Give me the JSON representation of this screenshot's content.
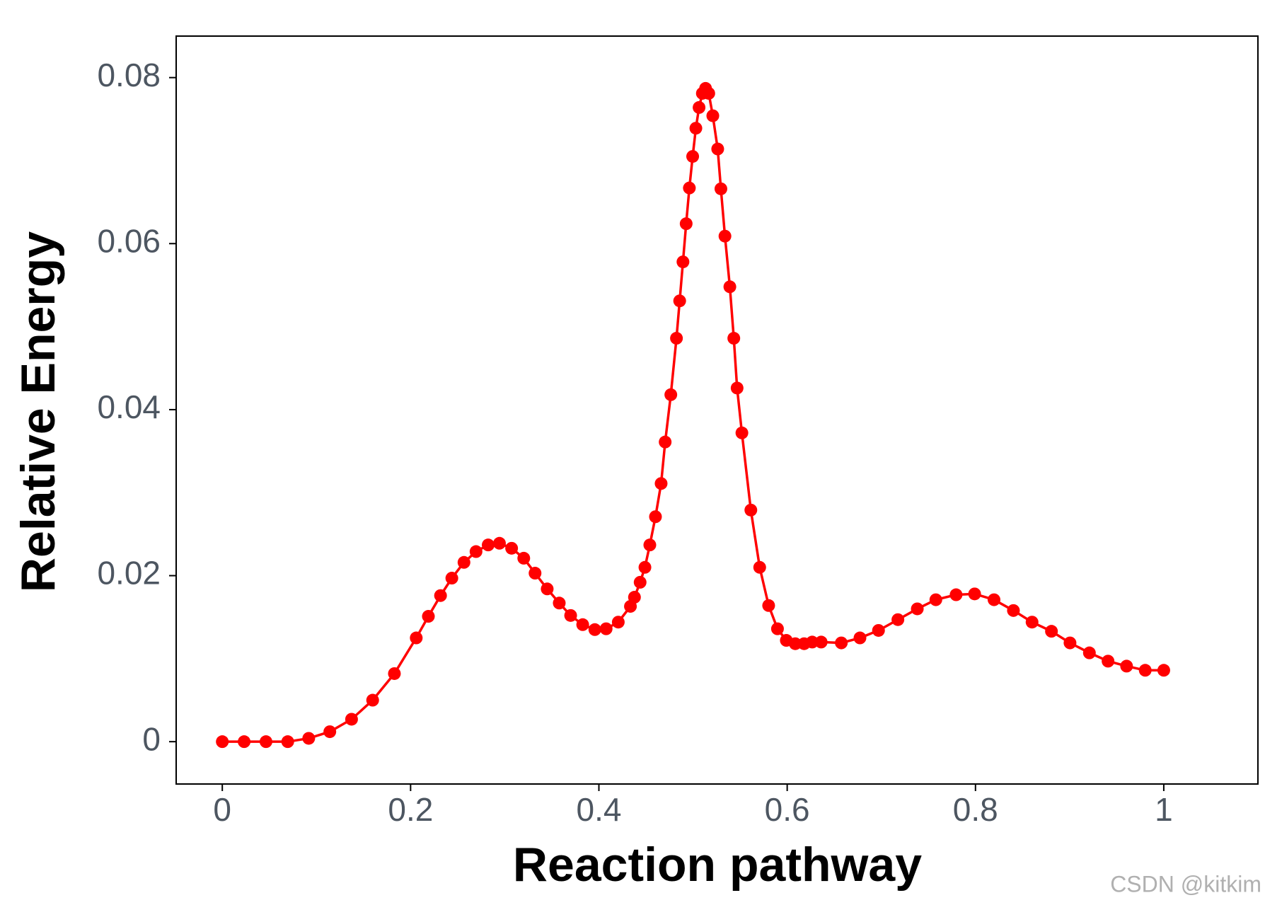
{
  "chart_data": {
    "type": "line",
    "xlabel": "Reaction pathway",
    "ylabel": "Relative Energy",
    "watermark": "CSDN @kitkim",
    "xlim": [
      -0.049,
      1.1
    ],
    "ylim": [
      -0.0051,
      0.085
    ],
    "xticks": [
      0,
      0.2,
      0.4,
      0.6,
      0.8,
      1
    ],
    "yticks": [
      0,
      0.02,
      0.04,
      0.06,
      0.08
    ],
    "series": [
      {
        "name": null,
        "color": "#ff0000",
        "x": [
          0,
          0.0232,
          0.0464,
          0.0695,
          0.0918,
          0.1142,
          0.1373,
          0.1597,
          0.1828,
          0.206,
          0.2189,
          0.2318,
          0.2438,
          0.2567,
          0.2695,
          0.2824,
          0.2944,
          0.3073,
          0.3202,
          0.3322,
          0.3451,
          0.3579,
          0.37,
          0.3828,
          0.3957,
          0.4077,
          0.4206,
          0.4335,
          0.4378,
          0.4438,
          0.4489,
          0.4541,
          0.4601,
          0.4661,
          0.4704,
          0.4764,
          0.4824,
          0.4858,
          0.4893,
          0.4927,
          0.4961,
          0.4996,
          0.503,
          0.5064,
          0.5099,
          0.5133,
          0.5167,
          0.521,
          0.5262,
          0.5296,
          0.5339,
          0.5391,
          0.5433,
          0.5468,
          0.5519,
          0.5614,
          0.5708,
          0.5803,
          0.5897,
          0.5991,
          0.6086,
          0.618,
          0.6266,
          0.6361,
          0.6575,
          0.6773,
          0.697,
          0.7176,
          0.7382,
          0.7579,
          0.7794,
          0.7991,
          0.8197,
          0.8403,
          0.8601,
          0.8807,
          0.9004,
          0.921,
          0.9408,
          0.9605,
          0.9803,
          1
        ],
        "values": [
          0,
          0,
          0,
          0,
          0.0004,
          0.0012,
          0.0027,
          0.005,
          0.0082,
          0.0125,
          0.0151,
          0.0176,
          0.0197,
          0.0216,
          0.0229,
          0.0237,
          0.0239,
          0.0233,
          0.0221,
          0.0203,
          0.0184,
          0.0167,
          0.0152,
          0.0141,
          0.0135,
          0.0136,
          0.0144,
          0.0163,
          0.0174,
          0.0192,
          0.021,
          0.0237,
          0.0271,
          0.0311,
          0.0361,
          0.0418,
          0.0486,
          0.0531,
          0.0578,
          0.0624,
          0.0667,
          0.0705,
          0.0739,
          0.0764,
          0.0781,
          0.0787,
          0.0781,
          0.0754,
          0.0714,
          0.0666,
          0.0609,
          0.0548,
          0.0486,
          0.0426,
          0.0372,
          0.0279,
          0.021,
          0.0164,
          0.0136,
          0.0122,
          0.0118,
          0.0118,
          0.012,
          0.012,
          0.0119,
          0.0125,
          0.0134,
          0.0147,
          0.016,
          0.0171,
          0.0177,
          0.0178,
          0.0171,
          0.0158,
          0.0144,
          0.0133,
          0.0119,
          0.0107,
          0.0097,
          0.0091,
          0.0086,
          0.0086
        ]
      }
    ]
  }
}
